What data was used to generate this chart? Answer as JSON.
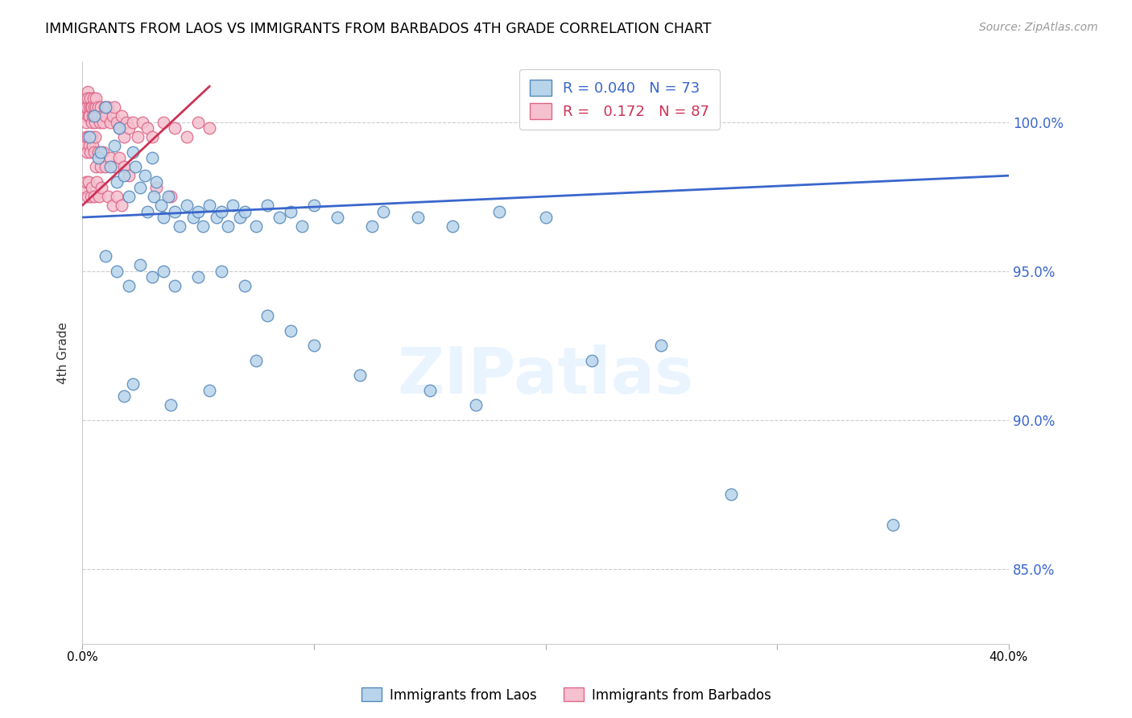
{
  "title": "IMMIGRANTS FROM LAOS VS IMMIGRANTS FROM BARBADOS 4TH GRADE CORRELATION CHART",
  "source": "Source: ZipAtlas.com",
  "ylabel": "4th Grade",
  "blue_label": "Immigrants from Laos",
  "pink_label": "Immigrants from Barbados",
  "blue_R": "0.040",
  "blue_N": "73",
  "pink_R": "0.172",
  "pink_N": "87",
  "blue_color": "#b8d4ea",
  "blue_edge": "#5588bb",
  "pink_color": "#f5c0cf",
  "pink_edge": "#dd6688",
  "blue_line_color": "#3a66cc",
  "pink_line_color": "#cc3355",
  "watermark": "ZIPatlas",
  "x_lim": [
    0.0,
    40.0
  ],
  "y_lim": [
    82.5,
    102.0
  ],
  "y_ticks": [
    85.0,
    90.0,
    95.0,
    100.0
  ],
  "y_tick_labels": [
    "85.0%",
    "90.0%",
    "95.0%",
    "100.0%"
  ],
  "blue_line_x": [
    0.0,
    40.0
  ],
  "blue_line_y": [
    96.8,
    98.2
  ],
  "pink_line_x": [
    0.0,
    5.5
  ],
  "pink_line_y": [
    97.2,
    101.2
  ],
  "blue_points_x": [
    0.3,
    0.5,
    0.7,
    0.8,
    1.0,
    1.2,
    1.4,
    1.5,
    1.6,
    1.8,
    2.0,
    2.2,
    2.3,
    2.5,
    2.7,
    2.8,
    3.0,
    3.1,
    3.2,
    3.4,
    3.5,
    3.7,
    4.0,
    4.2,
    4.5,
    4.8,
    5.0,
    5.2,
    5.5,
    5.8,
    6.0,
    6.3,
    6.5,
    6.8,
    7.0,
    7.5,
    8.0,
    8.5,
    9.0,
    9.5,
    10.0,
    11.0,
    12.5,
    13.0,
    14.5,
    16.0,
    18.0,
    20.0,
    22.0,
    25.0,
    1.0,
    1.5,
    2.0,
    2.5,
    3.0,
    3.5,
    4.0,
    5.0,
    6.0,
    7.0,
    8.0,
    9.0,
    10.0,
    12.0,
    15.0,
    17.0,
    1.8,
    2.2,
    3.8,
    5.5,
    7.5,
    28.0,
    35.0
  ],
  "blue_points_y": [
    99.5,
    100.2,
    98.8,
    99.0,
    100.5,
    98.5,
    99.2,
    98.0,
    99.8,
    98.2,
    97.5,
    99.0,
    98.5,
    97.8,
    98.2,
    97.0,
    98.8,
    97.5,
    98.0,
    97.2,
    96.8,
    97.5,
    97.0,
    96.5,
    97.2,
    96.8,
    97.0,
    96.5,
    97.2,
    96.8,
    97.0,
    96.5,
    97.2,
    96.8,
    97.0,
    96.5,
    97.2,
    96.8,
    97.0,
    96.5,
    97.2,
    96.8,
    96.5,
    97.0,
    96.8,
    96.5,
    97.0,
    96.8,
    92.0,
    92.5,
    95.5,
    95.0,
    94.5,
    95.2,
    94.8,
    95.0,
    94.5,
    94.8,
    95.0,
    94.5,
    93.5,
    93.0,
    92.5,
    91.5,
    91.0,
    90.5,
    90.8,
    91.2,
    90.5,
    91.0,
    92.0,
    87.5,
    86.5
  ],
  "pink_points_x": [
    0.05,
    0.08,
    0.1,
    0.12,
    0.15,
    0.18,
    0.2,
    0.22,
    0.25,
    0.28,
    0.3,
    0.32,
    0.35,
    0.38,
    0.4,
    0.42,
    0.45,
    0.48,
    0.5,
    0.52,
    0.55,
    0.58,
    0.6,
    0.65,
    0.7,
    0.75,
    0.8,
    0.85,
    0.9,
    0.95,
    1.0,
    1.1,
    1.2,
    1.3,
    1.4,
    1.5,
    1.6,
    1.7,
    1.8,
    1.9,
    2.0,
    2.2,
    2.4,
    2.6,
    2.8,
    3.0,
    3.5,
    4.0,
    4.5,
    5.0,
    0.1,
    0.15,
    0.2,
    0.25,
    0.3,
    0.35,
    0.4,
    0.45,
    0.5,
    0.55,
    0.6,
    0.7,
    0.8,
    0.9,
    1.0,
    1.2,
    1.4,
    1.6,
    1.8,
    2.0,
    0.12,
    0.18,
    0.22,
    0.28,
    0.38,
    0.42,
    0.52,
    0.62,
    0.72,
    0.82,
    1.1,
    1.3,
    1.5,
    1.7,
    3.2,
    3.8,
    5.5
  ],
  "pink_points_y": [
    100.5,
    100.8,
    100.2,
    100.5,
    100.0,
    100.8,
    100.5,
    101.0,
    100.8,
    100.2,
    100.5,
    100.2,
    100.8,
    100.5,
    100.0,
    100.5,
    100.2,
    100.8,
    100.5,
    100.2,
    100.0,
    100.5,
    100.8,
    100.2,
    100.5,
    100.0,
    100.5,
    100.2,
    100.0,
    100.5,
    100.2,
    100.5,
    100.0,
    100.2,
    100.5,
    100.0,
    99.8,
    100.2,
    99.5,
    100.0,
    99.8,
    100.0,
    99.5,
    100.0,
    99.8,
    99.5,
    100.0,
    99.8,
    99.5,
    100.0,
    99.2,
    99.5,
    99.0,
    99.5,
    99.2,
    99.0,
    99.5,
    99.2,
    99.0,
    99.5,
    98.5,
    99.0,
    98.5,
    99.0,
    98.5,
    98.8,
    98.5,
    98.8,
    98.5,
    98.2,
    97.8,
    98.0,
    97.5,
    98.0,
    97.5,
    97.8,
    97.5,
    98.0,
    97.5,
    97.8,
    97.5,
    97.2,
    97.5,
    97.2,
    97.8,
    97.5,
    99.8
  ]
}
